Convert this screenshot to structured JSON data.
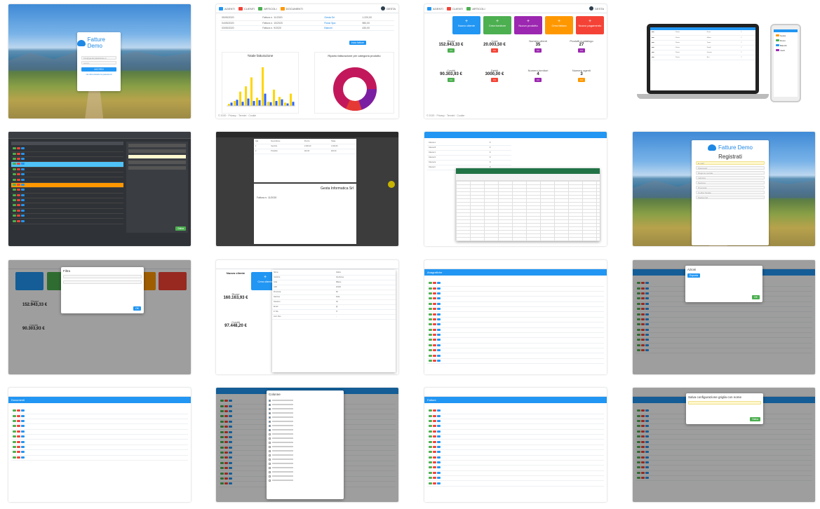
{
  "login": {
    "logo_text": "Fatture Demo",
    "email": "info@gestionalefatture.it",
    "password": "••••••••",
    "button": "ACCEDI",
    "link": "Ho dimenticato la password"
  },
  "register": {
    "logo_text": "Fatture Demo",
    "title": "Registrati",
    "fields": [
      "E-mail",
      "Password",
      "Ragione sociale",
      "Indirizzo",
      "Nazione",
      "Provincia",
      "Codice fiscale",
      "Partita IVA"
    ],
    "nation_value": "Italia"
  },
  "chart_tile": {
    "bar_title": "Totale fatturazione",
    "donut_title": "Riparto fatturazione per categoria prodotto",
    "button": "Invia fatture",
    "bar_values": [
      5,
      12,
      35,
      48,
      70,
      20,
      95,
      10,
      40,
      22,
      8,
      30
    ],
    "bar_values_blue": [
      8,
      15,
      10,
      18,
      12,
      14,
      30,
      9,
      12,
      16,
      6,
      10
    ]
  },
  "dashboard": {
    "actions": [
      {
        "label": "Nuovo cliente",
        "color": "#2196f3"
      },
      {
        "label": "Crea fornitore",
        "color": "#4caf50"
      },
      {
        "label": "Nuovo prodotto",
        "color": "#9c27b0"
      },
      {
        "label": "Crea fattura",
        "color": "#ff9800"
      },
      {
        "label": "Nuovo pagamento",
        "color": "#f44336"
      }
    ],
    "stats": [
      {
        "label": "Ricavi",
        "value": "152.943,33 €"
      },
      {
        "label": "Costi",
        "value": "20.003,50 €"
      },
      {
        "label": "Numero clienti",
        "value": "35"
      },
      {
        "label": "Prodotti a catalogo",
        "value": "27"
      },
      {
        "label": "Crediti",
        "value": "90.303,93 €"
      },
      {
        "label": "Debiti",
        "value": "3000,00 €"
      },
      {
        "label": "Numero fornitori",
        "value": "4"
      },
      {
        "label": "Numero agenti",
        "value": "3"
      }
    ]
  },
  "dashboard2": {
    "new_client": "Nuovo cliente",
    "create_client": "Crea cliente",
    "revenue_label": "Ricavi",
    "revenue": "160.163,93 €",
    "credits_label": "Crediti",
    "credits": "97.448,20 €"
  },
  "invoice": {
    "company": "Gesta Informatica Srl",
    "title": "Fattura n. 11/2020"
  },
  "modals": {
    "filter": "Filtra",
    "actions": "Azioni",
    "columns": "Colonne",
    "save_config": "Salva configurazione griglia con nome",
    "save_button": "Salva"
  },
  "grid_titles": {
    "anagrafiche": "Anagrafiche",
    "documenti": "Documenti",
    "fatture": "Fatture"
  },
  "footer_text": "© 2020 · Privacy · Termini · Cookie"
}
